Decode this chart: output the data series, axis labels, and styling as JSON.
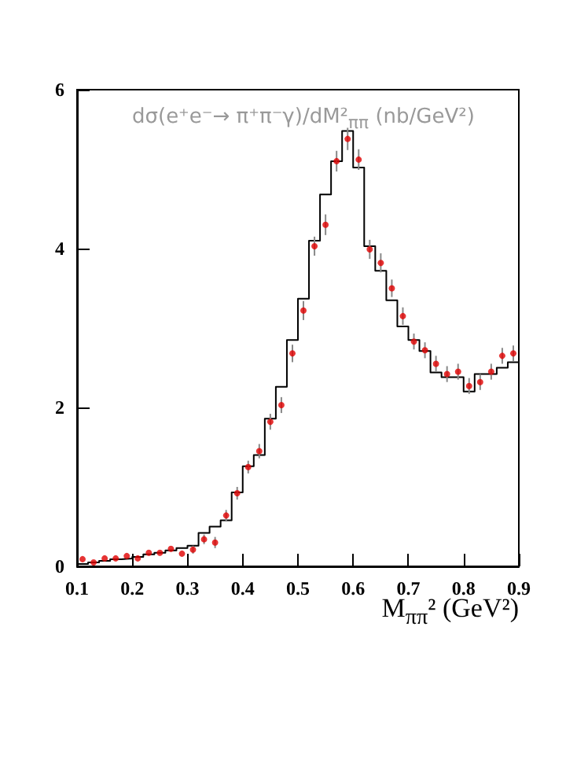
{
  "chart_data": {
    "type": "scatter",
    "title": "dσ(e⁺e⁻→ π⁺π⁻γ)/dM²$_{ππ}$ (nb/GeV²)",
    "xlabel": "M$_{ππ}$² (GeV²)",
    "x": [
      0.11,
      0.13,
      0.15,
      0.17,
      0.19,
      0.21,
      0.23,
      0.25,
      0.27,
      0.29,
      0.31,
      0.33,
      0.35,
      0.37,
      0.39,
      0.41,
      0.43,
      0.45,
      0.47,
      0.49,
      0.51,
      0.53,
      0.55,
      0.57,
      0.59,
      0.61,
      0.63,
      0.65,
      0.67,
      0.69,
      0.71,
      0.73,
      0.75,
      0.77,
      0.79,
      0.81,
      0.83,
      0.85,
      0.87,
      0.89
    ],
    "series": [
      {
        "type": "histogram",
        "color": "#000000",
        "bins": [
          0.1,
          0.12,
          0.14,
          0.16,
          0.18,
          0.2,
          0.22,
          0.24,
          0.26,
          0.28,
          0.3,
          0.32,
          0.34,
          0.36,
          0.38,
          0.4,
          0.42,
          0.44,
          0.46,
          0.48,
          0.5,
          0.52,
          0.54,
          0.56,
          0.58,
          0.6,
          0.62,
          0.64,
          0.66,
          0.68,
          0.7,
          0.72,
          0.74,
          0.76,
          0.78,
          0.8,
          0.82,
          0.84,
          0.86,
          0.88,
          0.9
        ],
        "values": [
          0.03,
          0.05,
          0.07,
          0.09,
          0.1,
          0.12,
          0.15,
          0.17,
          0.2,
          0.23,
          0.26,
          0.42,
          0.5,
          0.58,
          0.93,
          1.26,
          1.4,
          1.86,
          2.26,
          2.85,
          3.37,
          4.1,
          4.68,
          5.1,
          5.48,
          5.02,
          4.03,
          3.72,
          3.35,
          3.02,
          2.85,
          2.71,
          2.44,
          2.38,
          2.38,
          2.2,
          2.42,
          2.42,
          2.5,
          2.57
        ]
      },
      {
        "color": "#e00000",
        "values": [
          0.09,
          0.05,
          0.1,
          0.1,
          0.13,
          0.1,
          0.17,
          0.17,
          0.22,
          0.16,
          0.21,
          0.34,
          0.3,
          0.64,
          0.92,
          1.25,
          1.45,
          1.82,
          2.03,
          2.68,
          3.22,
          4.03,
          4.3,
          5.1,
          5.38,
          5.12,
          3.99,
          3.82,
          3.5,
          3.15,
          2.83,
          2.72,
          2.55,
          2.42,
          2.45,
          2.27,
          2.32,
          2.45,
          2.65,
          2.68
        ],
        "errors": [
          null,
          null,
          null,
          null,
          null,
          null,
          null,
          null,
          null,
          null,
          0.05,
          0.06,
          0.07,
          0.07,
          0.08,
          0.08,
          0.09,
          0.1,
          0.1,
          0.11,
          0.12,
          0.12,
          0.13,
          0.13,
          0.14,
          0.13,
          0.12,
          0.12,
          0.11,
          0.11,
          0.1,
          0.1,
          0.1,
          0.1,
          0.1,
          0.1,
          0.1,
          0.1,
          0.1,
          0.1
        ]
      }
    ],
    "xlim": [
      0.1,
      0.9
    ],
    "xticks": [
      0.1,
      0.2,
      0.3,
      0.4,
      0.5,
      0.6,
      0.7,
      0.8,
      0.9
    ],
    "ylim": [
      0,
      6
    ],
    "yticks": [
      0,
      2,
      4,
      6
    ],
    "marker": "circle",
    "grid": false
  }
}
